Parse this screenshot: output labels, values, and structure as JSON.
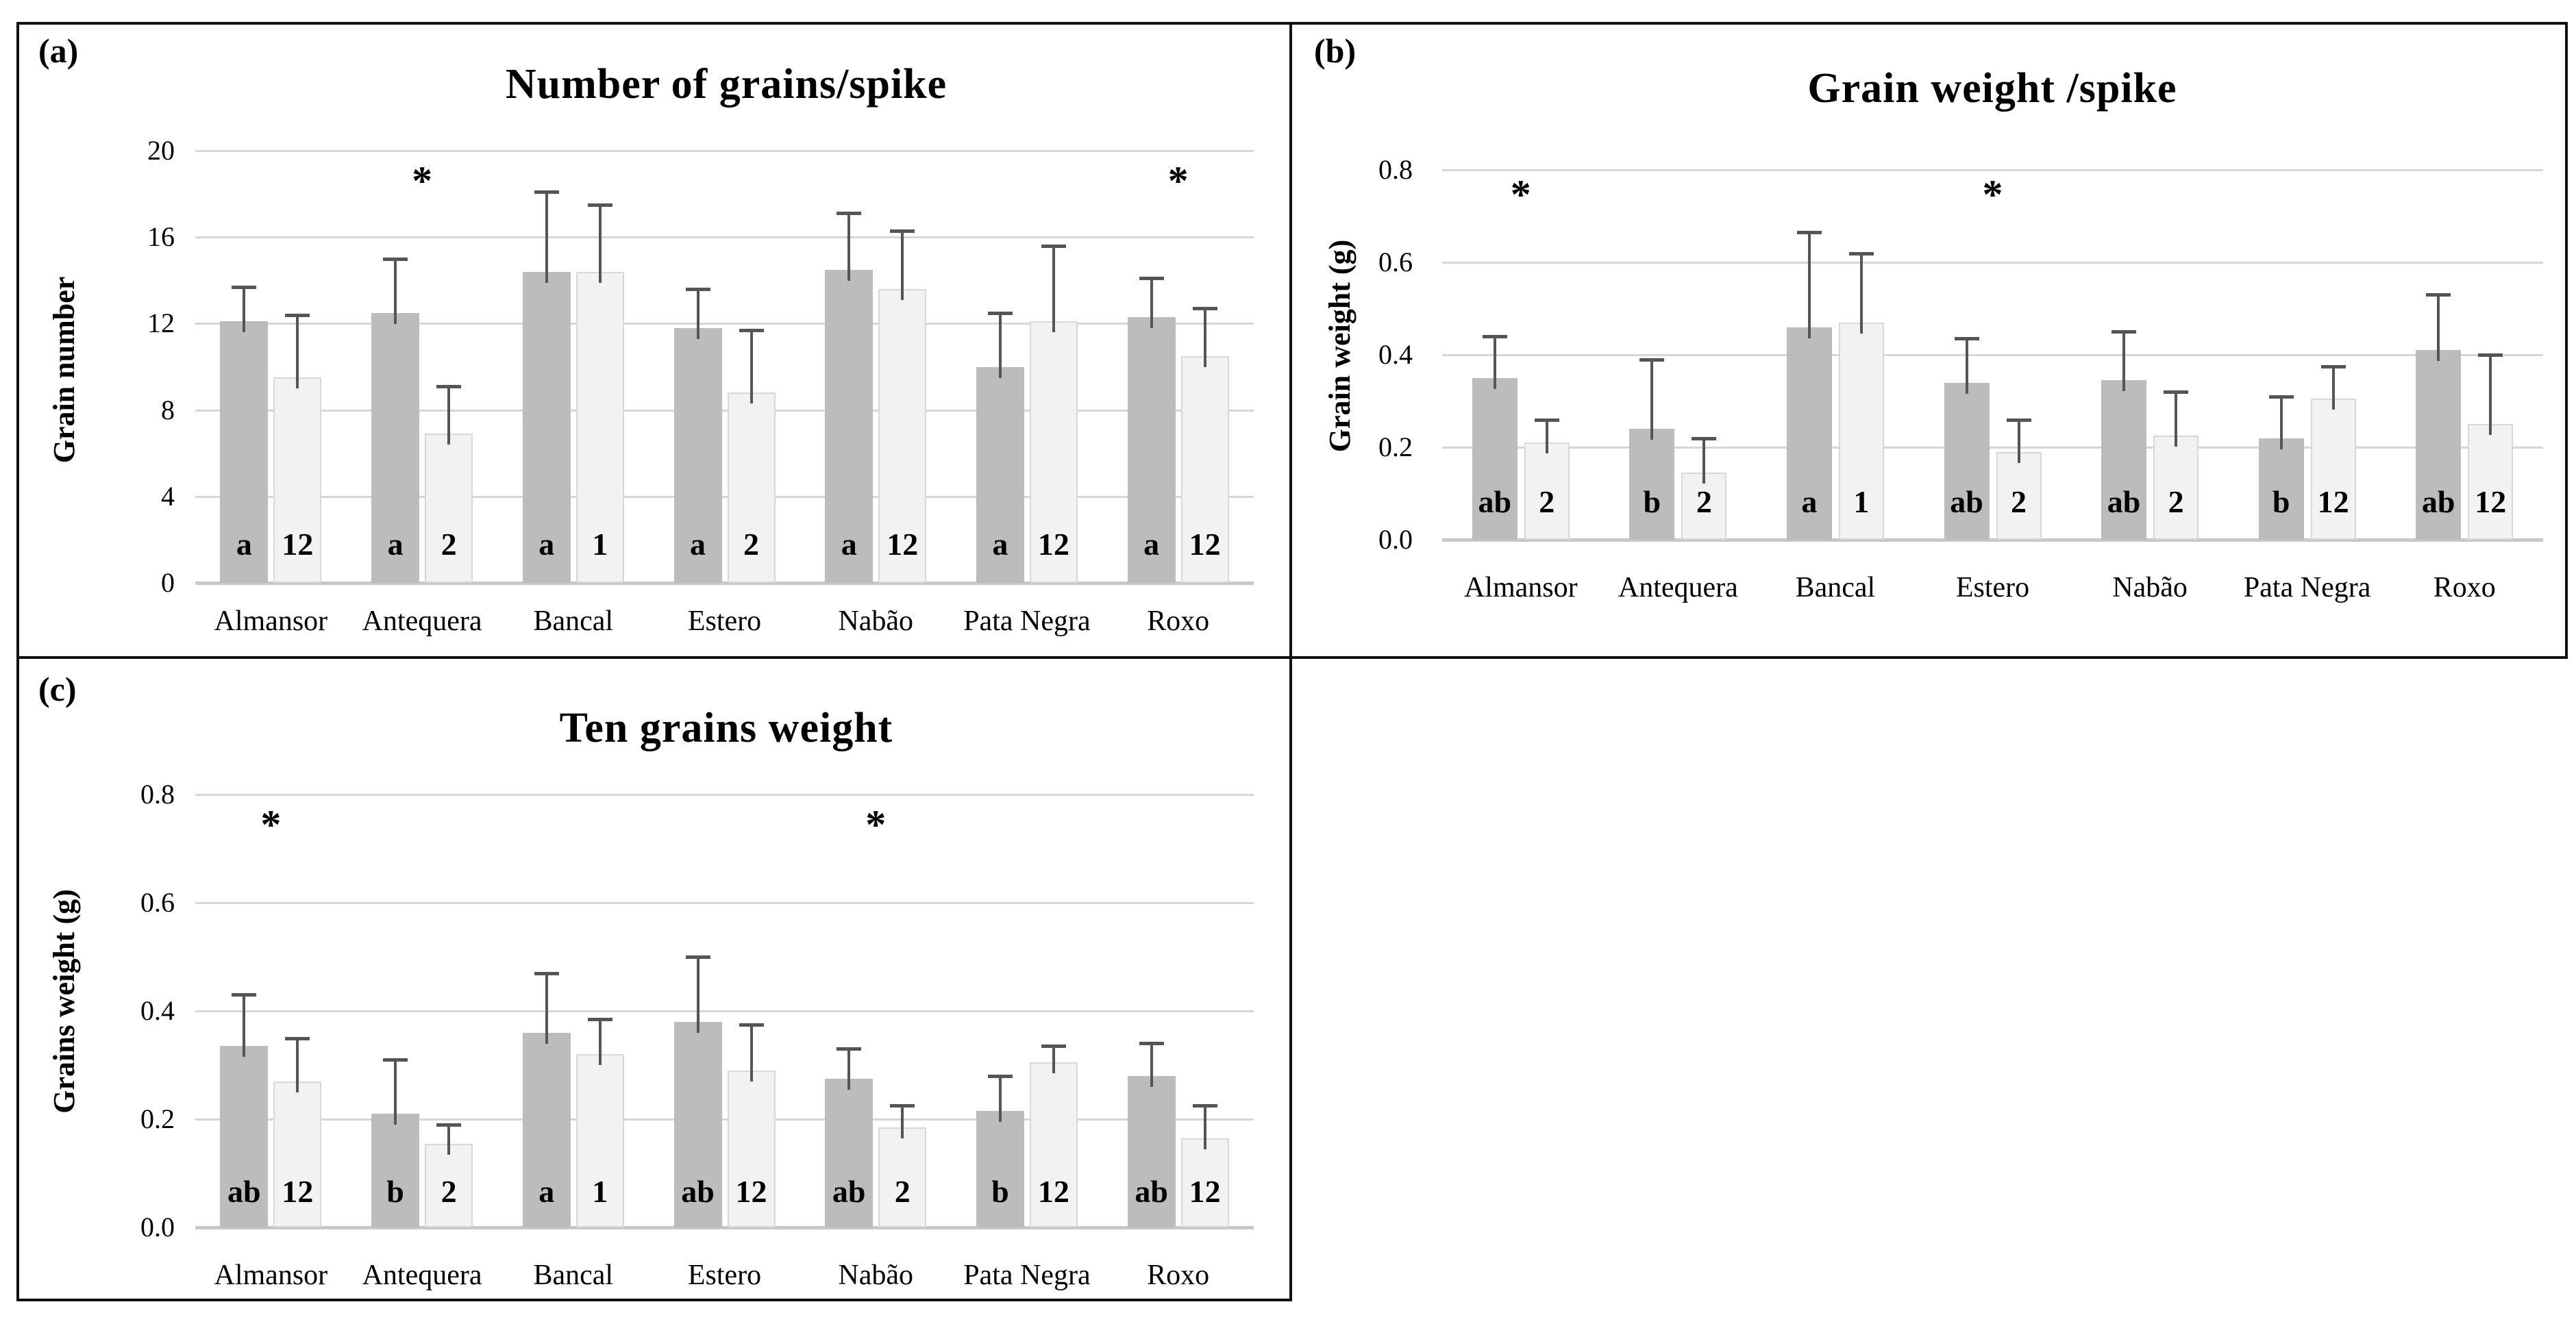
{
  "colors": {
    "dark_bar": "#bcbcbc",
    "light_bar": "#f2f2f2",
    "light_bar_border": "#d8d8d8",
    "error_bar": "#555555",
    "gridline": "#d6d6d6",
    "axis_line": "#c8c8c8",
    "panel_border": "#111111",
    "text": "#000000"
  },
  "chart_data": [
    {
      "id": "a",
      "type": "bar",
      "panel_tag": "(a)",
      "title": "Number of grains/spike",
      "xlabel": "",
      "ylabel": "Grain number",
      "ylim": [
        0,
        20
      ],
      "yticks": [
        0,
        4,
        8,
        12,
        16,
        20
      ],
      "ytick_labels": [
        "0",
        "4",
        "8",
        "12",
        "16",
        "20"
      ],
      "grid": true,
      "legend": "none",
      "error_bars": "upper-only",
      "categories": [
        "Almansor",
        "Antequera",
        "Bancal",
        "Estero",
        "Nabão",
        "Pata Negra",
        "Roxo"
      ],
      "series": [
        {
          "name": "series-1-dark",
          "color": "#bcbcbc",
          "values": [
            12.1,
            12.5,
            14.4,
            11.8,
            14.5,
            10.0,
            12.3
          ],
          "error_plus": [
            1.6,
            2.5,
            3.7,
            1.8,
            2.6,
            2.5,
            1.8
          ],
          "bar_labels": [
            "a",
            "a",
            "a",
            "a",
            "a",
            "a",
            "a"
          ]
        },
        {
          "name": "series-2-light",
          "color": "#f2f2f2",
          "values": [
            9.5,
            6.9,
            14.4,
            8.8,
            13.6,
            12.1,
            10.5
          ],
          "error_plus": [
            2.9,
            2.2,
            3.1,
            2.9,
            2.7,
            3.5,
            2.2
          ],
          "bar_labels": [
            "12",
            "2",
            "1",
            "2",
            "12",
            "12",
            "12"
          ]
        }
      ],
      "significance_asterisks": [
        "Antequera",
        "Roxo"
      ]
    },
    {
      "id": "b",
      "type": "bar",
      "panel_tag": "(b)",
      "title": "Grain weight /spike",
      "xlabel": "",
      "ylabel": "Grain weight (g)",
      "ylim": [
        0,
        0.8
      ],
      "yticks": [
        0,
        0.2,
        0.4,
        0.6,
        0.8
      ],
      "ytick_labels": [
        "0.0",
        "0.2",
        "0.4",
        "0.6",
        "0.8"
      ],
      "grid": true,
      "legend": "none",
      "error_bars": "upper-only",
      "categories": [
        "Almansor",
        "Antequera",
        "Bancal",
        "Estero",
        "Nabão",
        "Pata Negra",
        "Roxo"
      ],
      "series": [
        {
          "name": "series-1-dark",
          "color": "#bcbcbc",
          "values": [
            0.35,
            0.24,
            0.46,
            0.34,
            0.345,
            0.22,
            0.41
          ],
          "error_plus": [
            0.09,
            0.15,
            0.205,
            0.095,
            0.105,
            0.09,
            0.12
          ],
          "bar_labels": [
            "ab",
            "b",
            "a",
            "ab",
            "ab",
            "b",
            "ab"
          ]
        },
        {
          "name": "series-2-light",
          "color": "#f2f2f2",
          "values": [
            0.21,
            0.145,
            0.47,
            0.19,
            0.225,
            0.305,
            0.25
          ],
          "error_plus": [
            0.05,
            0.075,
            0.15,
            0.07,
            0.095,
            0.07,
            0.15
          ],
          "bar_labels": [
            "2",
            "2",
            "1",
            "2",
            "2",
            "12",
            "12"
          ]
        }
      ],
      "significance_asterisks": [
        "Almansor",
        "Estero"
      ]
    },
    {
      "id": "c",
      "type": "bar",
      "panel_tag": "(c)",
      "title": "Ten grains weight",
      "xlabel": "",
      "ylabel": "Grains weight (g)",
      "ylim": [
        0,
        0.8
      ],
      "yticks": [
        0,
        0.2,
        0.4,
        0.6,
        0.8
      ],
      "ytick_labels": [
        "0.0",
        "0.2",
        "0.4",
        "0.6",
        "0.8"
      ],
      "grid": true,
      "legend": "none",
      "error_bars": "upper-only",
      "categories": [
        "Almansor",
        "Antequera",
        "Bancal",
        "Estero",
        "Nabão",
        "Pata Negra",
        "Roxo"
      ],
      "series": [
        {
          "name": "series-1-dark",
          "color": "#bcbcbc",
          "values": [
            0.335,
            0.21,
            0.36,
            0.38,
            0.275,
            0.215,
            0.28
          ],
          "error_plus": [
            0.095,
            0.1,
            0.11,
            0.12,
            0.055,
            0.065,
            0.06
          ],
          "bar_labels": [
            "ab",
            "b",
            "a",
            "ab",
            "ab",
            "b",
            "ab"
          ]
        },
        {
          "name": "series-2-light",
          "color": "#f2f2f2",
          "values": [
            0.27,
            0.155,
            0.32,
            0.29,
            0.185,
            0.305,
            0.165
          ],
          "error_plus": [
            0.08,
            0.035,
            0.065,
            0.085,
            0.04,
            0.03,
            0.06
          ],
          "bar_labels": [
            "12",
            "2",
            "1",
            "12",
            "2",
            "12",
            "12"
          ]
        }
      ],
      "significance_asterisks": [
        "Almansor",
        "Nabão"
      ]
    }
  ]
}
